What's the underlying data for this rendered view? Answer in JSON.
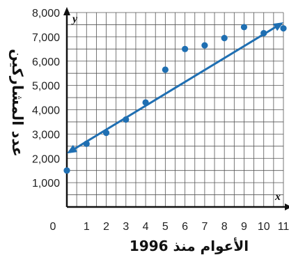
{
  "chart_data": {
    "type": "scatter",
    "title": "",
    "xlabel": "الأعوام منذ 1996",
    "ylabel": "عدد المشاركين",
    "x_axis_letter": "x",
    "y_axis_letter": "y",
    "xlim": [
      0,
      11
    ],
    "ylim": [
      0,
      8000
    ],
    "x_ticks": [
      0,
      1,
      2,
      3,
      4,
      5,
      6,
      7,
      8,
      9,
      10,
      11
    ],
    "x_tick_labels": [
      "0",
      "1",
      "2",
      "3",
      "4",
      "5",
      "6",
      "7",
      "8",
      "9",
      "10",
      "11"
    ],
    "y_ticks": [
      1000,
      2000,
      3000,
      4000,
      5000,
      6000,
      7000,
      8000
    ],
    "y_tick_labels": [
      "1,000",
      "2,000",
      "3,000",
      "4,000",
      "5,000",
      "6,000",
      "7,000",
      "8,000"
    ],
    "grid": true,
    "series": [
      {
        "x": [
          0,
          1,
          2,
          3,
          4,
          5,
          6,
          7,
          8,
          9,
          10,
          11
        ],
        "y": [
          1500,
          2600,
          3050,
          3600,
          4300,
          5650,
          6500,
          6650,
          6950,
          7400,
          7150,
          7350
        ]
      }
    ],
    "trend_line": {
      "x": [
        0,
        11
      ],
      "y": [
        2200,
        7600
      ]
    },
    "colors": {
      "points": "#1f6fb2",
      "line": "#1f6fb2",
      "grid": "#555555",
      "axis": "#111111"
    }
  }
}
